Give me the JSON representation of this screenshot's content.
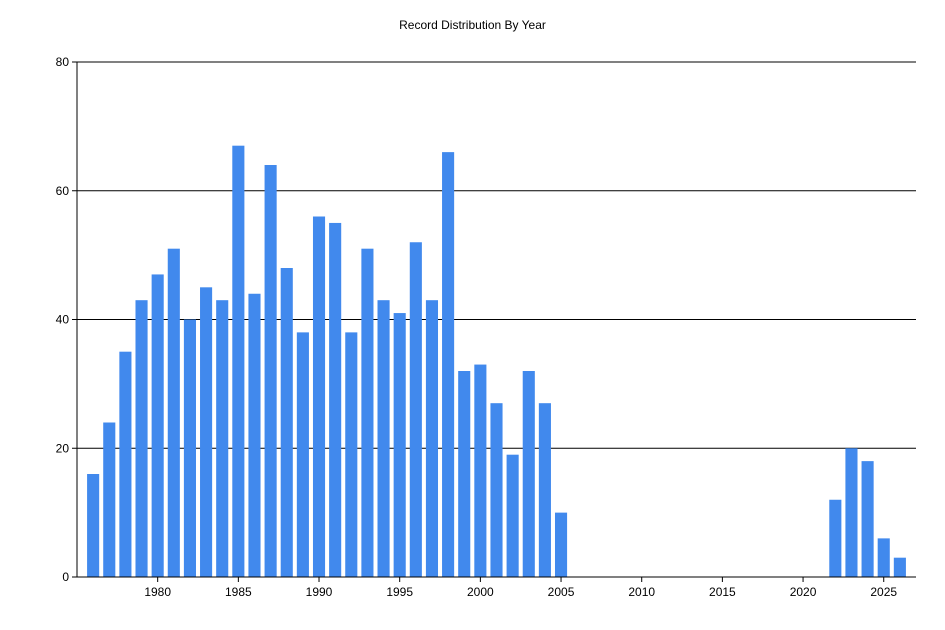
{
  "chart_data": {
    "type": "bar",
    "title": "Record Distribution By Year",
    "xlabel": "",
    "ylabel": "",
    "xlim": [
      1975,
      2027
    ],
    "ylim": [
      0,
      80
    ],
    "yticks": [
      0,
      20,
      40,
      60,
      80
    ],
    "xticks": [
      1980,
      1985,
      1990,
      1995,
      2000,
      2005,
      2010,
      2015,
      2020,
      2025
    ],
    "grid": true,
    "legend": "none",
    "bar_color": "#4189ed",
    "categories": [
      1976,
      1977,
      1978,
      1979,
      1980,
      1981,
      1982,
      1983,
      1984,
      1985,
      1986,
      1987,
      1988,
      1989,
      1990,
      1991,
      1992,
      1993,
      1994,
      1995,
      1996,
      1997,
      1998,
      1999,
      2000,
      2001,
      2002,
      2003,
      2004,
      2005,
      2022,
      2023,
      2024,
      2025,
      2026
    ],
    "values": [
      16,
      24,
      35,
      43,
      47,
      51,
      40,
      45,
      43,
      67,
      44,
      64,
      48,
      38,
      56,
      55,
      38,
      51,
      43,
      41,
      52,
      43,
      66,
      32,
      33,
      27,
      19,
      32,
      27,
      10,
      12,
      20,
      18,
      6,
      3
    ]
  }
}
